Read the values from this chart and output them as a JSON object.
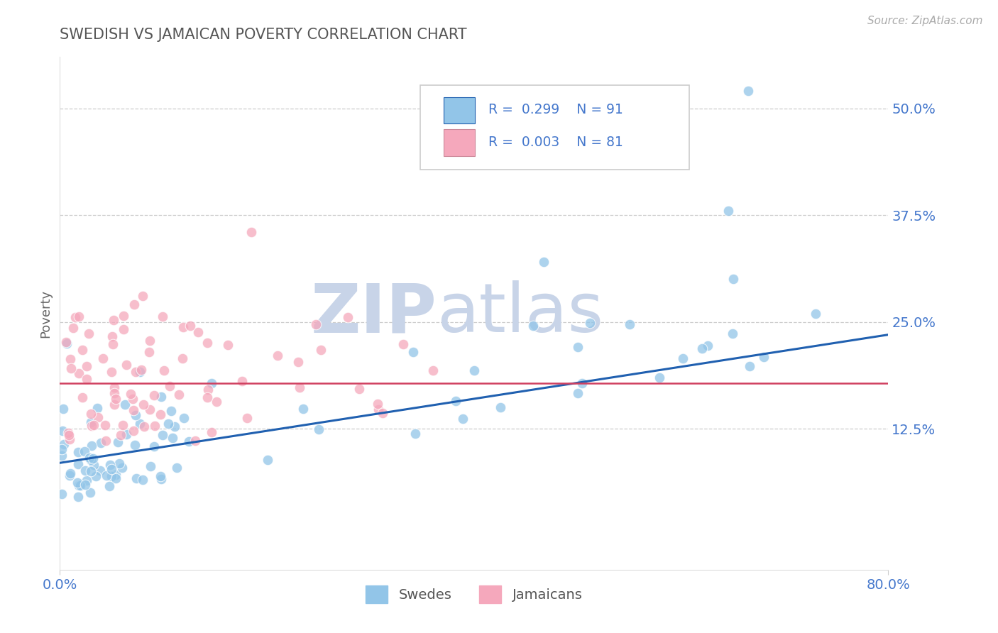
{
  "title": "SWEDISH VS JAMAICAN POVERTY CORRELATION CHART",
  "source": "Source: ZipAtlas.com",
  "ylabel": "Poverty",
  "xlim": [
    0.0,
    0.8
  ],
  "ylim": [
    -0.04,
    0.56
  ],
  "yticks": [
    0.125,
    0.25,
    0.375,
    0.5
  ],
  "ytick_labels": [
    "12.5%",
    "25.0%",
    "37.5%",
    "50.0%"
  ],
  "xticks": [
    0.0,
    0.8
  ],
  "xtick_labels": [
    "0.0%",
    "80.0%"
  ],
  "grid_color": "#cccccc",
  "background_color": "#ffffff",
  "swedes_color": "#92c5e8",
  "jamaicans_color": "#f5a8bc",
  "swedes_line_color": "#2060b0",
  "jamaicans_line_color": "#d04060",
  "R_swedes": 0.299,
  "N_swedes": 91,
  "R_jamaicans": 0.003,
  "N_jamaicans": 81,
  "legend_label_swedes": "Swedes",
  "legend_label_jamaicans": "Jamaicans",
  "title_color": "#555555",
  "axis_label_color": "#666666",
  "tick_label_color": "#4477cc",
  "watermark_zip_color": "#c8d4e8",
  "watermark_atlas_color": "#c8d4e8",
  "sw_trend_start": 0.085,
  "sw_trend_end": 0.235,
  "ja_trend_y": 0.178,
  "legend_R_N_color": "#4477cc",
  "legend_box_edge_color": "#cccccc"
}
